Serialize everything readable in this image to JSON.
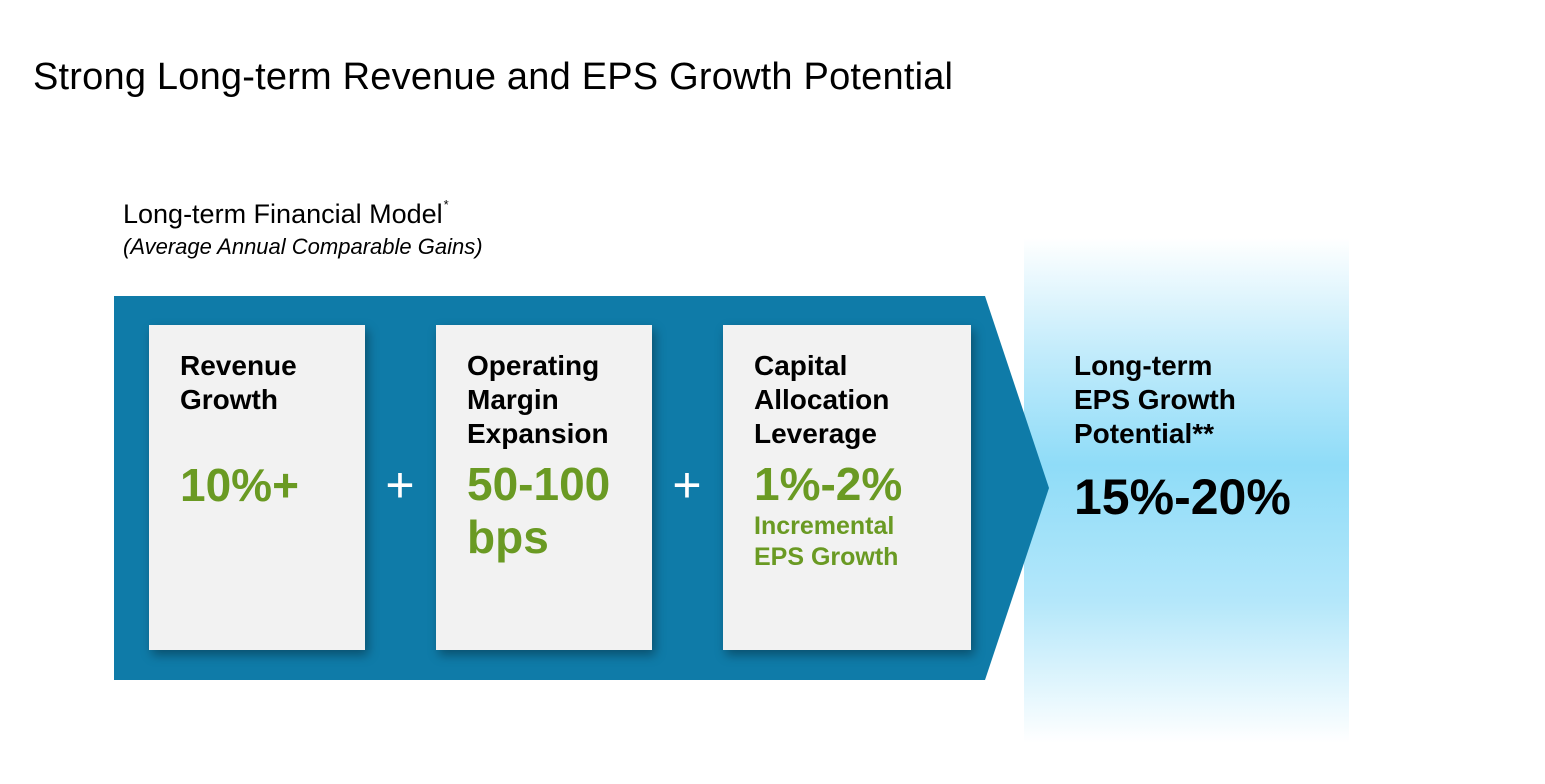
{
  "title": "Strong Long-term Revenue and EPS Growth Potential",
  "model": {
    "title": "Long-term Financial Model",
    "title_marker": "*",
    "subtitle": "(Average Annual Comparable Gains)"
  },
  "components": [
    {
      "label": [
        "Revenue",
        "Growth"
      ],
      "value": [
        "10%+"
      ],
      "note": []
    },
    {
      "label": [
        "Operating",
        "Margin",
        "Expansion"
      ],
      "value": [
        "50-100",
        "bps"
      ],
      "note": []
    },
    {
      "label": [
        "Capital",
        "Allocation",
        "Leverage"
      ],
      "value": [
        "1%-2%"
      ],
      "note": [
        "Incremental",
        "EPS Growth"
      ]
    }
  ],
  "operators": [
    "+",
    "+"
  ],
  "result": {
    "label": [
      "Long-term",
      "EPS Growth",
      "Potential**"
    ],
    "value": "15%-20%"
  },
  "colors": {
    "arrow": "#0f7ba8",
    "box": "#f2f2f2",
    "value_green": "#6a9a23",
    "highlight": "#8fdcf8"
  }
}
